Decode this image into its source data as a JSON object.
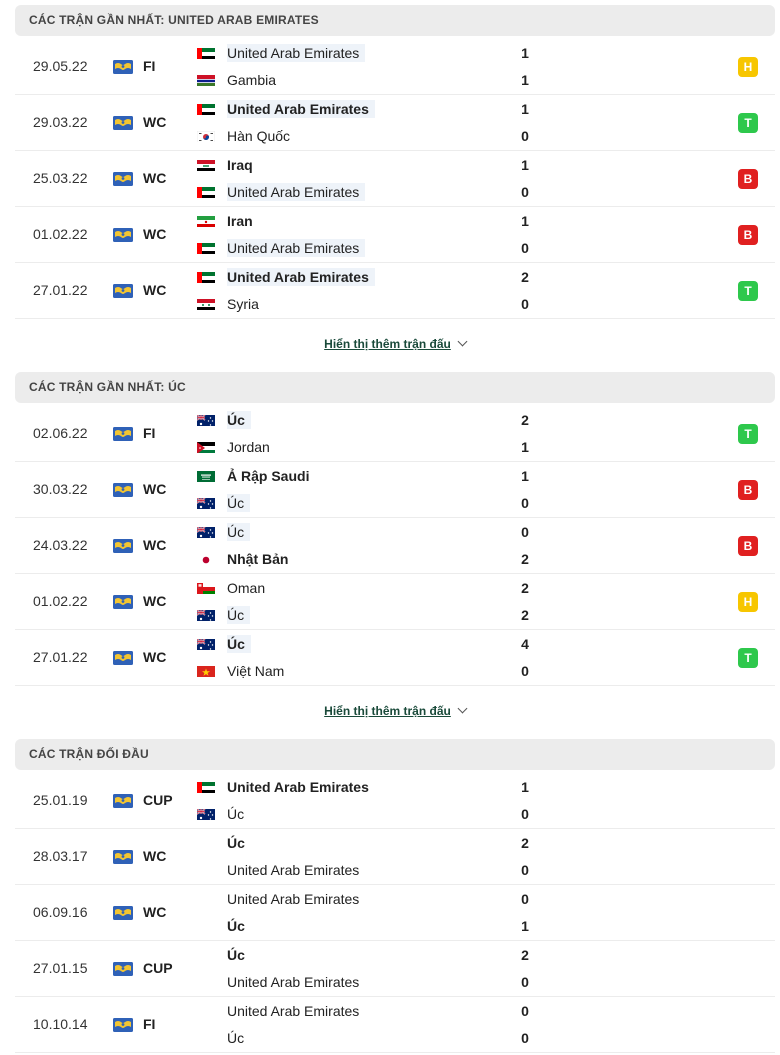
{
  "sections": [
    {
      "title": "CÁC TRẬN GẦN NHẤT: UNITED ARAB EMIRATES",
      "more_label": "Hiển thị thêm trận đấu",
      "matches": [
        {
          "date": "29.05.22",
          "comp": "FI",
          "home": {
            "name": "United Arab Emirates",
            "flag": "uae",
            "hl": true,
            "bold": false,
            "score": "1"
          },
          "away": {
            "name": "Gambia",
            "flag": "gambia",
            "hl": false,
            "bold": false,
            "score": "1"
          },
          "result": "H"
        },
        {
          "date": "29.03.22",
          "comp": "WC",
          "home": {
            "name": "United Arab Emirates",
            "flag": "uae",
            "hl": true,
            "bold": true,
            "score": "1"
          },
          "away": {
            "name": "Hàn Quốc",
            "flag": "korea",
            "hl": false,
            "bold": false,
            "score": "0"
          },
          "result": "T"
        },
        {
          "date": "25.03.22",
          "comp": "WC",
          "home": {
            "name": "Iraq",
            "flag": "iraq",
            "hl": false,
            "bold": true,
            "score": "1"
          },
          "away": {
            "name": "United Arab Emirates",
            "flag": "uae",
            "hl": true,
            "bold": false,
            "score": "0"
          },
          "result": "B"
        },
        {
          "date": "01.02.22",
          "comp": "WC",
          "home": {
            "name": "Iran",
            "flag": "iran",
            "hl": false,
            "bold": true,
            "score": "1"
          },
          "away": {
            "name": "United Arab Emirates",
            "flag": "uae",
            "hl": true,
            "bold": false,
            "score": "0"
          },
          "result": "B"
        },
        {
          "date": "27.01.22",
          "comp": "WC",
          "home": {
            "name": "United Arab Emirates",
            "flag": "uae",
            "hl": true,
            "bold": true,
            "score": "2"
          },
          "away": {
            "name": "Syria",
            "flag": "syria",
            "hl": false,
            "bold": false,
            "score": "0"
          },
          "result": "T"
        }
      ]
    },
    {
      "title": "CÁC TRẬN GẦN NHẤT: ÚC",
      "more_label": "Hiển thị thêm trận đấu",
      "matches": [
        {
          "date": "02.06.22",
          "comp": "FI",
          "home": {
            "name": "Úc",
            "flag": "aus",
            "hl": true,
            "bold": true,
            "score": "2"
          },
          "away": {
            "name": "Jordan",
            "flag": "jordan",
            "hl": false,
            "bold": false,
            "score": "1"
          },
          "result": "T"
        },
        {
          "date": "30.03.22",
          "comp": "WC",
          "home": {
            "name": "Ả Rập Saudi",
            "flag": "saudi",
            "hl": false,
            "bold": true,
            "score": "1"
          },
          "away": {
            "name": "Úc",
            "flag": "aus",
            "hl": true,
            "bold": false,
            "score": "0"
          },
          "result": "B"
        },
        {
          "date": "24.03.22",
          "comp": "WC",
          "home": {
            "name": "Úc",
            "flag": "aus",
            "hl": true,
            "bold": false,
            "score": "0"
          },
          "away": {
            "name": "Nhật Bản",
            "flag": "japan",
            "hl": false,
            "bold": true,
            "score": "2"
          },
          "result": "B"
        },
        {
          "date": "01.02.22",
          "comp": "WC",
          "home": {
            "name": "Oman",
            "flag": "oman",
            "hl": false,
            "bold": false,
            "score": "2"
          },
          "away": {
            "name": "Úc",
            "flag": "aus",
            "hl": true,
            "bold": false,
            "score": "2"
          },
          "result": "H"
        },
        {
          "date": "27.01.22",
          "comp": "WC",
          "home": {
            "name": "Úc",
            "flag": "aus",
            "hl": true,
            "bold": true,
            "score": "4"
          },
          "away": {
            "name": "Việt Nam",
            "flag": "vietnam",
            "hl": false,
            "bold": false,
            "score": "0"
          },
          "result": "T"
        }
      ]
    },
    {
      "title": "CÁC TRẬN ĐỐI ĐẦU",
      "more_label": "",
      "matches": [
        {
          "date": "25.01.19",
          "comp": "CUP",
          "home": {
            "name": "United Arab Emirates",
            "flag": "uae",
            "hl": false,
            "bold": true,
            "score": "1"
          },
          "away": {
            "name": "Úc",
            "flag": "aus",
            "hl": false,
            "bold": false,
            "score": "0"
          },
          "result": ""
        },
        {
          "date": "28.03.17",
          "comp": "WC",
          "home": {
            "name": "Úc",
            "flag": "",
            "hl": false,
            "bold": true,
            "score": "2"
          },
          "away": {
            "name": "United Arab Emirates",
            "flag": "",
            "hl": false,
            "bold": false,
            "score": "0"
          },
          "result": ""
        },
        {
          "date": "06.09.16",
          "comp": "WC",
          "home": {
            "name": "United Arab Emirates",
            "flag": "",
            "hl": false,
            "bold": false,
            "score": "0"
          },
          "away": {
            "name": "Úc",
            "flag": "",
            "hl": false,
            "bold": true,
            "score": "1"
          },
          "result": ""
        },
        {
          "date": "27.01.15",
          "comp": "CUP",
          "home": {
            "name": "Úc",
            "flag": "",
            "hl": false,
            "bold": true,
            "score": "2"
          },
          "away": {
            "name": "United Arab Emirates",
            "flag": "",
            "hl": false,
            "bold": false,
            "score": "0"
          },
          "result": ""
        },
        {
          "date": "10.10.14",
          "comp": "FI",
          "home": {
            "name": "United Arab Emirates",
            "flag": "",
            "hl": false,
            "bold": false,
            "score": "0"
          },
          "away": {
            "name": "Úc",
            "flag": "",
            "hl": false,
            "bold": false,
            "score": "0"
          },
          "result": ""
        }
      ]
    }
  ]
}
